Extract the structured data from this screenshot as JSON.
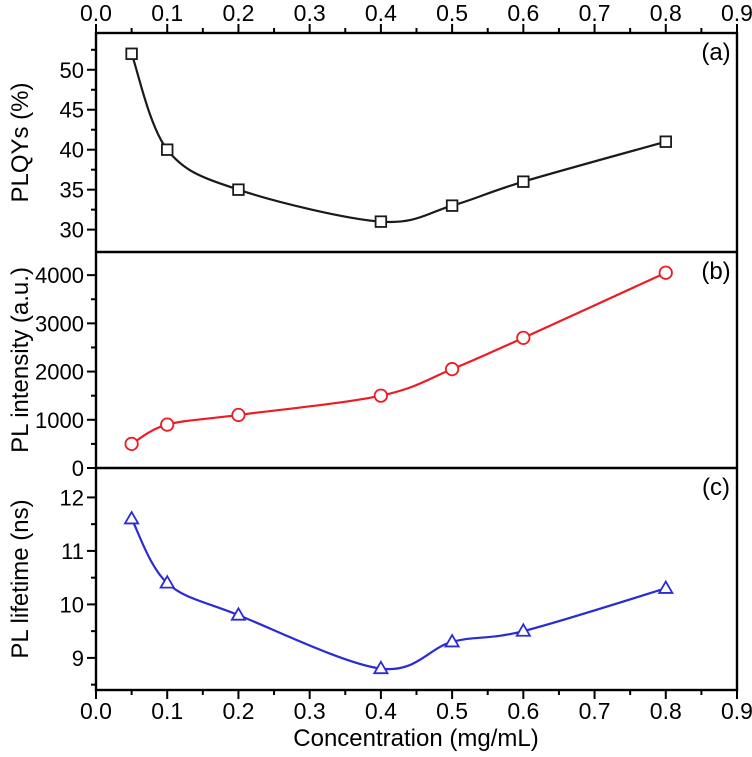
{
  "chart_data": {
    "type": "line",
    "title": "",
    "xlabel": "Concentration (mg/mL)",
    "x": [
      0.05,
      0.1,
      0.2,
      0.4,
      0.5,
      0.6,
      0.8
    ],
    "xlim": [
      0.0,
      0.9
    ],
    "x_major_ticks": [
      0.0,
      0.1,
      0.2,
      0.3,
      0.4,
      0.5,
      0.6,
      0.7,
      0.8,
      0.9
    ],
    "x_minor_tick_step": 0.05,
    "x_tick_decimals": 1,
    "x_axis_labeled_top_and_bottom": true,
    "grid": false,
    "legend": "none",
    "background_color": "#ffffff",
    "axis_color": "#000000",
    "panels": [
      {
        "label": "(a)",
        "series_name": "PLQYs",
        "ylabel": "PLQYs (%)",
        "marker": "square",
        "color": "#1a1a1a",
        "values": [
          52,
          40,
          35,
          31,
          33,
          36,
          41
        ],
        "ylim": [
          27.2,
          54.6
        ],
        "y_major_ticks": [
          30,
          35,
          40,
          45,
          50
        ],
        "y_minor_tick_step": 2.5
      },
      {
        "label": "(b)",
        "series_name": "PL intensity",
        "ylabel": "PL intensity (a.u.)",
        "marker": "circle",
        "color": "#ed1c24",
        "values": [
          500,
          900,
          1100,
          1500,
          2050,
          2700,
          4050
        ],
        "ylim": [
          0,
          4480
        ],
        "y_major_ticks": [
          0,
          1000,
          2000,
          3000,
          4000
        ],
        "y_minor_tick_step": 500
      },
      {
        "label": "(c)",
        "series_name": "PL lifetime",
        "ylabel": "PL lifetime (ns)",
        "marker": "triangle",
        "color": "#2b2bd5",
        "values": [
          11.6,
          10.4,
          9.8,
          8.8,
          9.3,
          9.5,
          10.3
        ],
        "ylim": [
          8.4,
          12.55
        ],
        "y_major_ticks": [
          9,
          10,
          11,
          12
        ],
        "y_minor_tick_step": 0.5
      }
    ]
  }
}
